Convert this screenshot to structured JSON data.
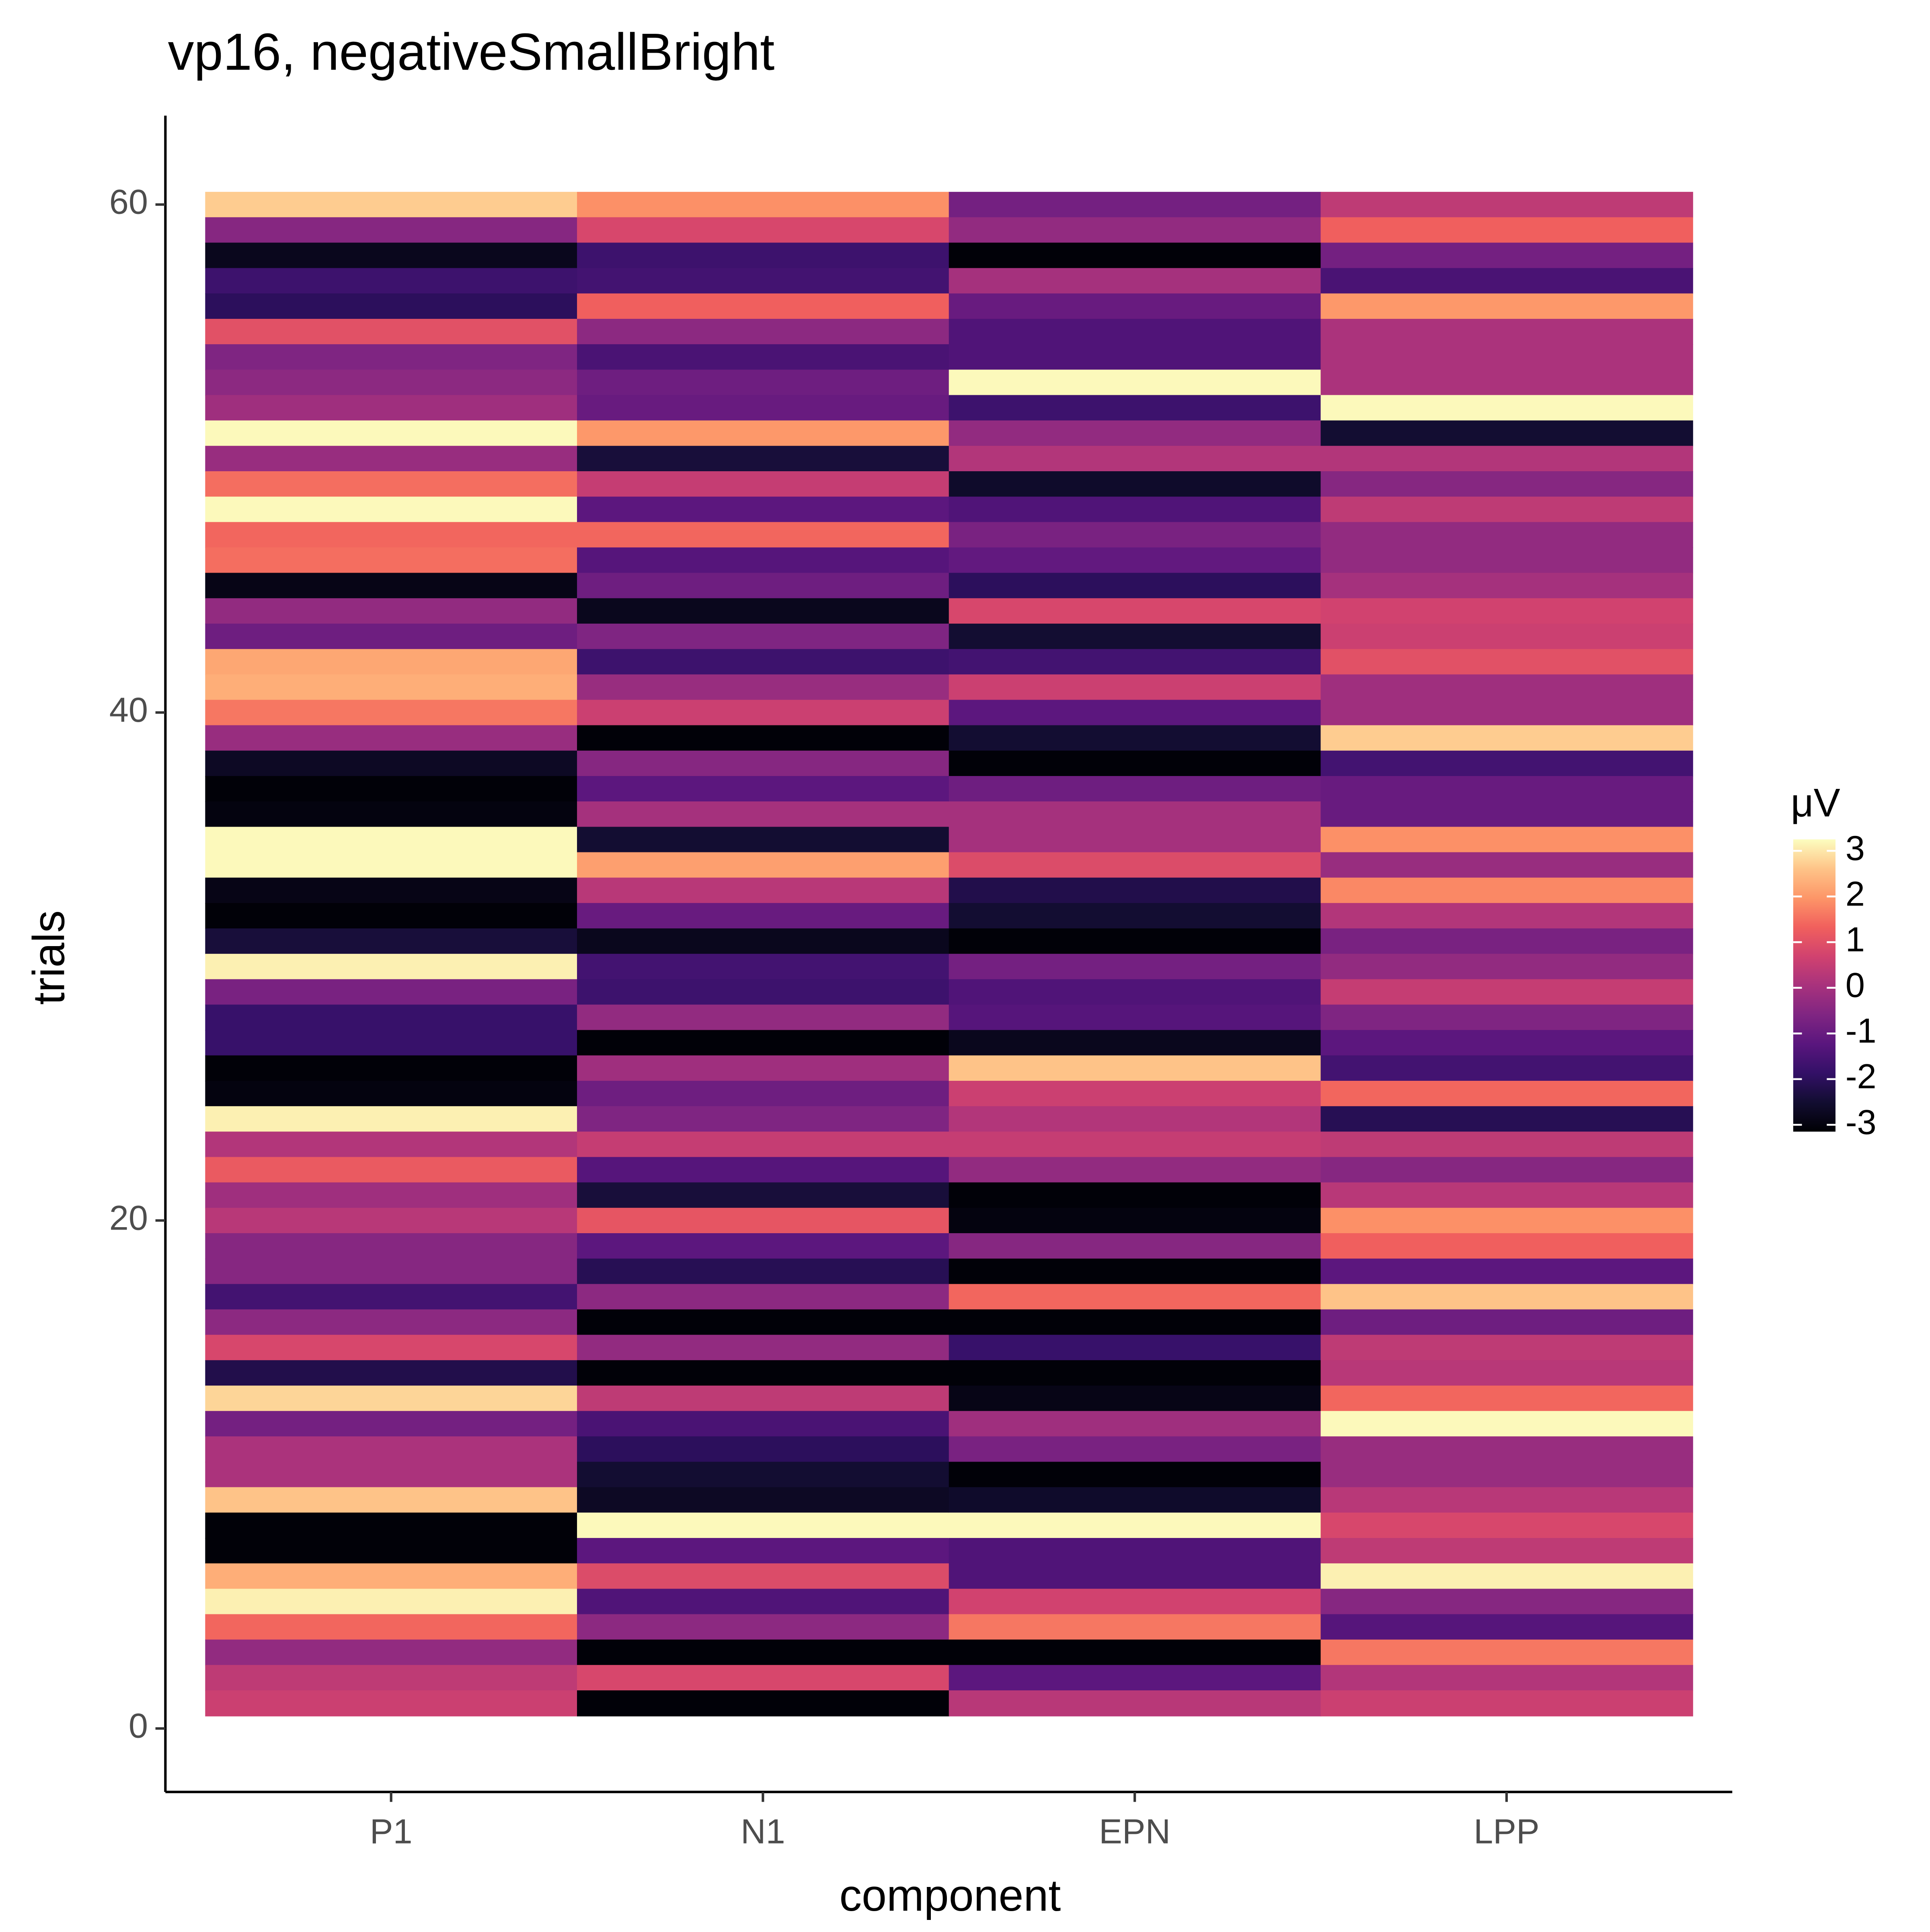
{
  "chart_data": {
    "type": "heatmap",
    "title": "vp16, negativeSmallBright",
    "x_label": "component",
    "y_label": "trials",
    "categories": [
      "P1",
      "N1",
      "EPN",
      "LPP"
    ],
    "y": [
      60,
      59,
      58,
      57,
      56,
      55,
      54,
      53,
      52,
      51,
      50,
      49,
      48,
      47,
      46,
      45,
      44,
      43,
      42,
      41,
      40,
      39,
      38,
      37,
      36,
      35,
      34,
      33,
      32,
      31,
      30,
      29,
      28,
      27,
      26,
      25,
      24,
      23,
      22,
      21,
      20,
      19,
      18,
      17,
      16,
      15,
      14,
      13,
      12,
      11,
      10,
      9,
      8,
      7,
      6,
      5,
      4,
      3,
      2,
      1
    ],
    "values": [
      [
        2.7,
        -0.5,
        -2.8,
        -1.7,
        -2.0,
        1.0,
        -0.6,
        -0.4,
        -0.1,
        3.2,
        -0.2,
        1.5,
        3.2,
        1.4,
        1.5,
        -2.9,
        -0.3,
        -0.9,
        2.2,
        2.3,
        1.6,
        -0.2,
        -2.7,
        -3.1,
        -3.0,
        3.2,
        3.2,
        -2.9,
        -3.1,
        -2.4,
        3.1,
        -0.7,
        -1.8,
        -1.8,
        -3.1,
        -3.0,
        3.1,
        0.2,
        1.2,
        -0.1,
        0.3,
        -0.5,
        -0.5,
        -1.6,
        -0.4,
        0.8,
        -2.2,
        2.8,
        -0.8,
        0.1,
        0.1,
        2.6,
        -3.1,
        -3.1,
        2.3,
        3.1,
        1.4,
        -0.3,
        0.4,
        0.6
      ],
      [
        1.9,
        0.8,
        -1.7,
        -1.6,
        1.3,
        -0.4,
        -1.5,
        -0.9,
        -1.0,
        2.0,
        -2.4,
        0.5,
        -1.2,
        1.4,
        -1.3,
        -0.9,
        -2.8,
        -0.6,
        -1.7,
        -0.2,
        0.6,
        -3.1,
        -0.5,
        -1.2,
        0.0,
        -2.5,
        2.1,
        0.3,
        -1.0,
        -2.8,
        -1.6,
        -1.7,
        -0.3,
        -3.1,
        -0.1,
        -0.9,
        -0.6,
        0.5,
        -1.3,
        -2.4,
        1.1,
        -1.2,
        -2.1,
        -0.4,
        -3.1,
        -0.3,
        -3.1,
        0.4,
        -1.5,
        -2.0,
        -2.5,
        -2.7,
        3.2,
        -1.2,
        0.9,
        -1.4,
        -0.4,
        -3.1,
        0.8,
        -3.1
      ],
      [
        -0.8,
        -0.3,
        -3.1,
        0.0,
        -1.0,
        -1.4,
        -1.4,
        3.2,
        -1.7,
        -0.3,
        0.2,
        -2.6,
        -1.4,
        -0.7,
        -1.1,
        -2.0,
        0.8,
        -2.5,
        -1.6,
        0.6,
        -1.2,
        -2.5,
        -3.1,
        -0.9,
        0.0,
        0.0,
        0.9,
        -2.2,
        -2.5,
        -3.1,
        -0.8,
        -1.4,
        -1.3,
        -2.8,
        2.6,
        0.6,
        0.2,
        0.5,
        -0.3,
        -3.1,
        -3.0,
        -0.5,
        -3.1,
        1.4,
        -3.1,
        -1.8,
        -3.1,
        -2.9,
        -0.1,
        -0.7,
        -3.1,
        -2.6,
        3.2,
        -1.4,
        -1.4,
        0.7,
        1.6,
        -3.1,
        -1.2,
        0.3
      ],
      [
        0.4,
        1.3,
        -0.8,
        -1.5,
        2.0,
        0.1,
        0.1,
        0.1,
        3.2,
        -2.5,
        0.2,
        -0.5,
        0.4,
        -0.3,
        -0.3,
        0.0,
        0.7,
        0.6,
        1.0,
        -0.1,
        -0.1,
        2.7,
        -1.6,
        -1.0,
        -1.0,
        1.9,
        -0.2,
        1.8,
        0.2,
        -0.7,
        -0.3,
        0.5,
        -0.6,
        -1.2,
        -1.6,
        1.4,
        -2.1,
        0.4,
        -0.5,
        0.3,
        1.9,
        1.3,
        -1.2,
        2.6,
        -0.9,
        0.4,
        0.3,
        1.4,
        3.2,
        -0.2,
        -0.2,
        0.3,
        0.8,
        0.4,
        3.1,
        -0.5,
        -1.3,
        1.6,
        0.2,
        0.6
      ]
    ],
    "ylim": [
      -2.5,
      63.5
    ],
    "yticks": [
      0,
      20,
      40,
      60
    ],
    "colorbar": {
      "title": "μV",
      "lim": [
        -3.15,
        3.25
      ],
      "ticks": [
        3,
        2,
        1,
        0,
        -1,
        -2,
        -3
      ]
    },
    "colormap": [
      "#000004",
      "#120d31",
      "#331067",
      "#5a167e",
      "#802582",
      "#a8327d",
      "#d1426f",
      "#f1605d",
      "#fd9668",
      "#fec488",
      "#fcfdbf"
    ]
  }
}
